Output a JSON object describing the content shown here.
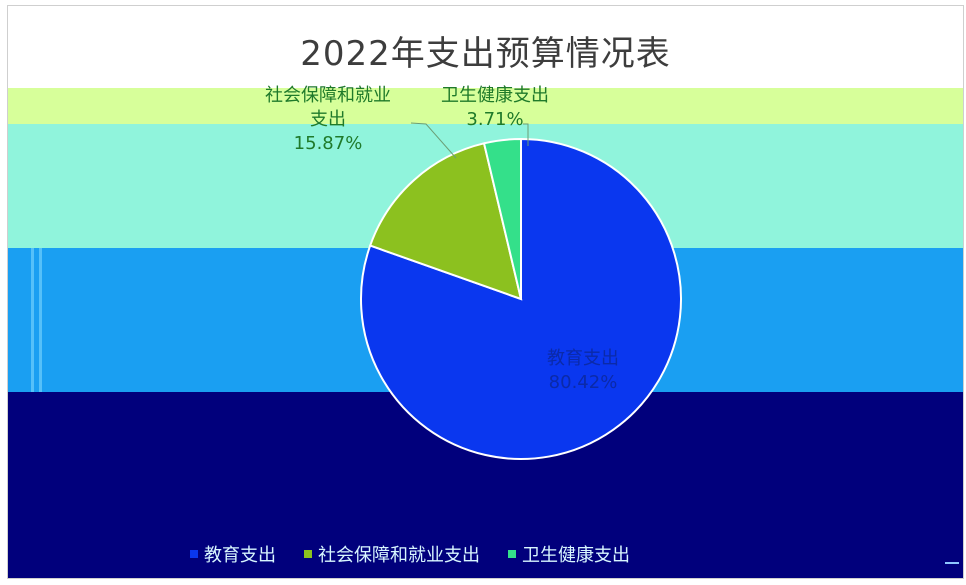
{
  "chart_data": {
    "type": "pie",
    "title": "2022年支出预算情况表",
    "slices": [
      {
        "name": "教育支出",
        "label_lines": [
          "教育支出",
          "80.42%"
        ],
        "value": 80.42,
        "color": "#0a37ef"
      },
      {
        "name": "社会保障和就业支出",
        "label_lines": [
          "社会保障和就业",
          "支出",
          "15.87%"
        ],
        "value": 15.87,
        "color": "#8cc11f"
      },
      {
        "name": "卫生健康支出",
        "label_lines": [
          "卫生健康支出",
          "3.71%"
        ],
        "value": 3.71,
        "color": "#34e08a"
      }
    ],
    "legend": {
      "position": "bottom",
      "items": [
        "教育支出",
        "社会保障和就业支出",
        "卫生健康支出"
      ]
    }
  }
}
